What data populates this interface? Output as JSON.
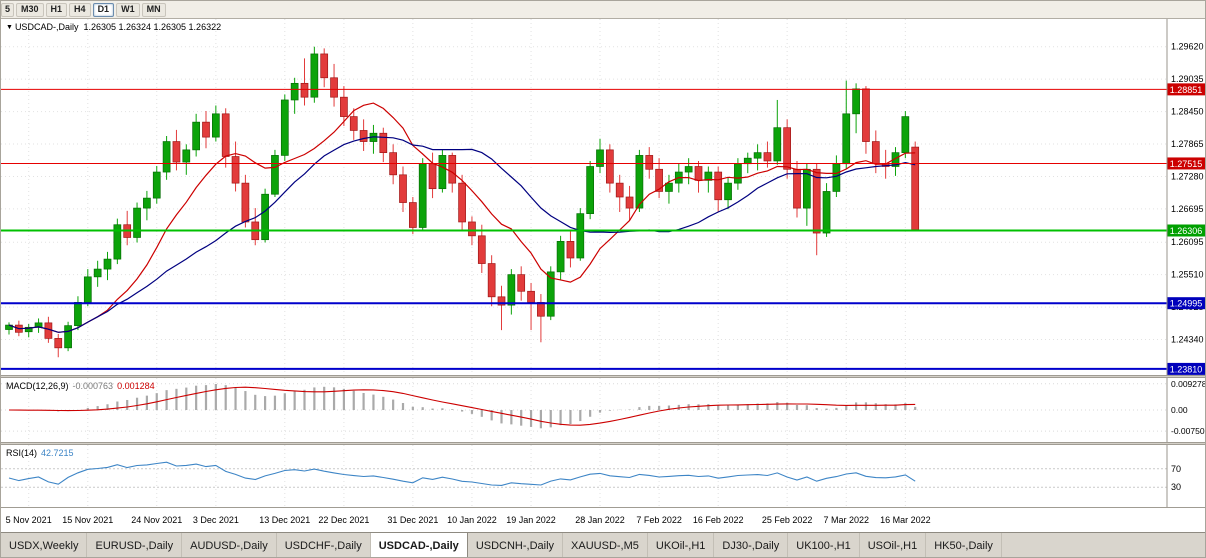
{
  "toolbar": {
    "periods": [
      {
        "label": "5"
      },
      {
        "label": "M30"
      },
      {
        "label": "H1"
      },
      {
        "label": "H4"
      },
      {
        "label": "D1"
      },
      {
        "label": "W1"
      },
      {
        "label": "MN"
      }
    ],
    "active_period": "D1"
  },
  "chart_header": {
    "collapse_marker": "▼",
    "symbol": "USDCAD-,Daily",
    "quote_line": "1.26305 1.26324 1.26305 1.26322"
  },
  "indicators": {
    "macd": {
      "name": "MACD(12,26,9)",
      "value_main": "-0.000763",
      "value_signal": "0.001284"
    },
    "rsi": {
      "name": "RSI(14)",
      "value": "42.7215"
    }
  },
  "chart_data": {
    "type": "candlestick",
    "symbol": "USDCAD-,Daily",
    "timeframe": "Daily",
    "price_range": {
      "max": 1.3012,
      "min": 1.237
    },
    "y_axis_labels": [
      "1.29620",
      "1.29035",
      "1.28450",
      "1.27865",
      "1.27280",
      "1.26695",
      "1.26095",
      "1.25510",
      "1.24925",
      "1.24340"
    ],
    "price_lines": [
      {
        "price": "1.28851",
        "color": "#e60000",
        "width": 1,
        "badge_bg": "#cc0000"
      },
      {
        "price": "1.27515",
        "color": "#e60000",
        "width": 1,
        "badge_bg": "#cc0000"
      },
      {
        "price": "1.26306",
        "color": "#00c000",
        "width": 2,
        "badge_bg": "#00a000"
      },
      {
        "price": "1.24995",
        "color": "#0000cc",
        "width": 2,
        "badge_bg": "#0000bb"
      },
      {
        "price": "1.23810",
        "color": "#0000cc",
        "width": 2,
        "badge_bg": "#0000bb"
      }
    ],
    "x_tick_labels": [
      "5 Nov 2021",
      "15 Nov 2021",
      "24 Nov 2021",
      "3 Dec 2021",
      "13 Dec 2021",
      "22 Dec 2021",
      "31 Dec 2021",
      "10 Jan 2022",
      "19 Jan 2022",
      "28 Jan 2022",
      "7 Feb 2022",
      "16 Feb 2022",
      "25 Feb 2022",
      "7 Mar 2022",
      "16 Mar 2022"
    ],
    "x_tick_indices": [
      2,
      8,
      15,
      21,
      28,
      34,
      41,
      47,
      53,
      60,
      66,
      72,
      79,
      85,
      91
    ],
    "moving_averages": [
      {
        "name": "ma-fast",
        "color": "#cc0000",
        "period": 10
      },
      {
        "name": "ma-slow",
        "color": "#000080",
        "period": 22
      }
    ],
    "candles_ohlc": [
      [
        1.2452,
        1.2465,
        1.2443,
        1.246
      ],
      [
        1.246,
        1.2468,
        1.244,
        1.2447
      ],
      [
        1.2448,
        1.2462,
        1.2438,
        1.2456
      ],
      [
        1.2456,
        1.2472,
        1.2446,
        1.2464
      ],
      [
        1.2464,
        1.2475,
        1.2428,
        1.2436
      ],
      [
        1.2436,
        1.2444,
        1.2402,
        1.2419
      ],
      [
        1.2419,
        1.2466,
        1.2413,
        1.2459
      ],
      [
        1.2459,
        1.2512,
        1.2451,
        1.2501
      ],
      [
        1.2501,
        1.2561,
        1.2494,
        1.2547
      ],
      [
        1.2547,
        1.2576,
        1.2529,
        1.2561
      ],
      [
        1.2561,
        1.2592,
        1.2541,
        1.2579
      ],
      [
        1.2579,
        1.2652,
        1.257,
        1.2641
      ],
      [
        1.2641,
        1.2666,
        1.2604,
        1.2618
      ],
      [
        1.2618,
        1.2681,
        1.2609,
        1.2671
      ],
      [
        1.2671,
        1.2702,
        1.2649,
        1.2689
      ],
      [
        1.2689,
        1.2747,
        1.2679,
        1.2736
      ],
      [
        1.2736,
        1.2801,
        1.2722,
        1.2791
      ],
      [
        1.2791,
        1.2812,
        1.2739,
        1.2754
      ],
      [
        1.2754,
        1.2786,
        1.2731,
        1.2776
      ],
      [
        1.2776,
        1.2841,
        1.2764,
        1.2826
      ],
      [
        1.2826,
        1.2846,
        1.2779,
        1.2799
      ],
      [
        1.2799,
        1.2856,
        1.2791,
        1.2841
      ],
      [
        1.2841,
        1.2851,
        1.2744,
        1.2764
      ],
      [
        1.2764,
        1.2791,
        1.2701,
        1.2716
      ],
      [
        1.2716,
        1.2731,
        1.2636,
        1.2646
      ],
      [
        1.2646,
        1.2671,
        1.2604,
        1.2614
      ],
      [
        1.2614,
        1.2706,
        1.2609,
        1.2696
      ],
      [
        1.2696,
        1.2776,
        1.2691,
        1.2766
      ],
      [
        1.2766,
        1.2876,
        1.2756,
        1.2866
      ],
      [
        1.2866,
        1.2906,
        1.2841,
        1.2896
      ],
      [
        1.2896,
        1.2941,
        1.2856,
        1.2871
      ],
      [
        1.2871,
        1.2962,
        1.2861,
        1.2949
      ],
      [
        1.2949,
        1.2959,
        1.2889,
        1.2906
      ],
      [
        1.2906,
        1.2931,
        1.2854,
        1.2871
      ],
      [
        1.2871,
        1.2891,
        1.2819,
        1.2836
      ],
      [
        1.2836,
        1.2851,
        1.2794,
        1.2811
      ],
      [
        1.2811,
        1.2831,
        1.2774,
        1.2791
      ],
      [
        1.2791,
        1.2821,
        1.2769,
        1.2806
      ],
      [
        1.2806,
        1.2816,
        1.2754,
        1.2771
      ],
      [
        1.2771,
        1.2786,
        1.2714,
        1.2731
      ],
      [
        1.2731,
        1.2746,
        1.2664,
        1.2681
      ],
      [
        1.2681,
        1.2691,
        1.2624,
        1.2636
      ],
      [
        1.2636,
        1.2761,
        1.2631,
        1.2751
      ],
      [
        1.2751,
        1.2771,
        1.2689,
        1.2706
      ],
      [
        1.2706,
        1.2776,
        1.2699,
        1.2766
      ],
      [
        1.2766,
        1.2771,
        1.2699,
        1.2716
      ],
      [
        1.2716,
        1.2731,
        1.2629,
        1.2646
      ],
      [
        1.2646,
        1.2656,
        1.2604,
        1.2621
      ],
      [
        1.2621,
        1.2641,
        1.2554,
        1.2571
      ],
      [
        1.2571,
        1.2586,
        1.2494,
        1.2511
      ],
      [
        1.2511,
        1.2531,
        1.2451,
        1.2496
      ],
      [
        1.2496,
        1.2561,
        1.2479,
        1.2551
      ],
      [
        1.2551,
        1.2566,
        1.2504,
        1.2521
      ],
      [
        1.2521,
        1.2536,
        1.2451,
        1.2501
      ],
      [
        1.2501,
        1.2516,
        1.2429,
        1.2476
      ],
      [
        1.2476,
        1.2566,
        1.2469,
        1.2556
      ],
      [
        1.2556,
        1.2621,
        1.2541,
        1.2611
      ],
      [
        1.2611,
        1.2631,
        1.2564,
        1.2581
      ],
      [
        1.2581,
        1.2671,
        1.2576,
        1.2661
      ],
      [
        1.2661,
        1.2756,
        1.2651,
        1.2746
      ],
      [
        1.2746,
        1.2796,
        1.2734,
        1.2776
      ],
      [
        1.2776,
        1.2786,
        1.2699,
        1.2716
      ],
      [
        1.2716,
        1.2731,
        1.2664,
        1.2691
      ],
      [
        1.2691,
        1.2711,
        1.2649,
        1.2671
      ],
      [
        1.2671,
        1.2776,
        1.2664,
        1.2766
      ],
      [
        1.2766,
        1.2781,
        1.2724,
        1.2741
      ],
      [
        1.2741,
        1.2761,
        1.2689,
        1.2701
      ],
      [
        1.2701,
        1.2731,
        1.2679,
        1.2716
      ],
      [
        1.2716,
        1.2751,
        1.2699,
        1.2736
      ],
      [
        1.2736,
        1.2761,
        1.2714,
        1.2746
      ],
      [
        1.2746,
        1.2756,
        1.2699,
        1.2721
      ],
      [
        1.2721,
        1.2746,
        1.2699,
        1.2736
      ],
      [
        1.2736,
        1.2746,
        1.2664,
        1.2686
      ],
      [
        1.2686,
        1.2726,
        1.2669,
        1.2716
      ],
      [
        1.2716,
        1.2761,
        1.2704,
        1.2751
      ],
      [
        1.2751,
        1.2771,
        1.2734,
        1.2761
      ],
      [
        1.2761,
        1.2786,
        1.2739,
        1.2771
      ],
      [
        1.2771,
        1.2791,
        1.2744,
        1.2756
      ],
      [
        1.2756,
        1.2866,
        1.2749,
        1.2816
      ],
      [
        1.2816,
        1.2831,
        1.2724,
        1.2741
      ],
      [
        1.2741,
        1.2756,
        1.2654,
        1.2671
      ],
      [
        1.2671,
        1.2751,
        1.2639,
        1.2741
      ],
      [
        1.2741,
        1.2751,
        1.2586,
        1.2626
      ],
      [
        1.2626,
        1.2716,
        1.2619,
        1.2701
      ],
      [
        1.2701,
        1.2766,
        1.2691,
        1.2751
      ],
      [
        1.2751,
        1.2901,
        1.2741,
        1.2841
      ],
      [
        1.2841,
        1.2896,
        1.2806,
        1.2886
      ],
      [
        1.2886,
        1.2891,
        1.2769,
        1.2791
      ],
      [
        1.2791,
        1.2811,
        1.2734,
        1.2751
      ],
      [
        1.2751,
        1.2776,
        1.2724,
        1.2746
      ],
      [
        1.2746,
        1.2781,
        1.2729,
        1.2771
      ],
      [
        1.2771,
        1.2846,
        1.2761,
        1.2836
      ],
      [
        1.2781,
        1.2791,
        1.2629,
        1.2632
      ]
    ],
    "macd_panel": {
      "params": [
        12,
        26,
        9
      ],
      "axis_labels": [
        "0.009278",
        "0.00",
        "-0.00750"
      ],
      "histogram_color": "#aaaaaa",
      "signal_color": "#cc0000"
    },
    "rsi_panel": {
      "period": 14,
      "last_value": 42.7215,
      "levels": [
        70,
        30
      ],
      "axis_labels": [
        "70",
        "30"
      ],
      "line_color": "#3d85c6"
    }
  },
  "tabs": [
    {
      "label": "USDX,Weekly"
    },
    {
      "label": "EURUSD-,Daily"
    },
    {
      "label": "AUDUSD-,Daily"
    },
    {
      "label": "USDCHF-,Daily"
    },
    {
      "label": "USDCAD-,Daily",
      "active": true
    },
    {
      "label": "USDCNH-,Daily"
    },
    {
      "label": "XAUUSD-,M5"
    },
    {
      "label": "UKOil-,H1"
    },
    {
      "label": "DJ30-,Daily"
    },
    {
      "label": "UK100-,H1"
    },
    {
      "label": "USOil-,H1"
    },
    {
      "label": "HK50-,Daily"
    }
  ]
}
